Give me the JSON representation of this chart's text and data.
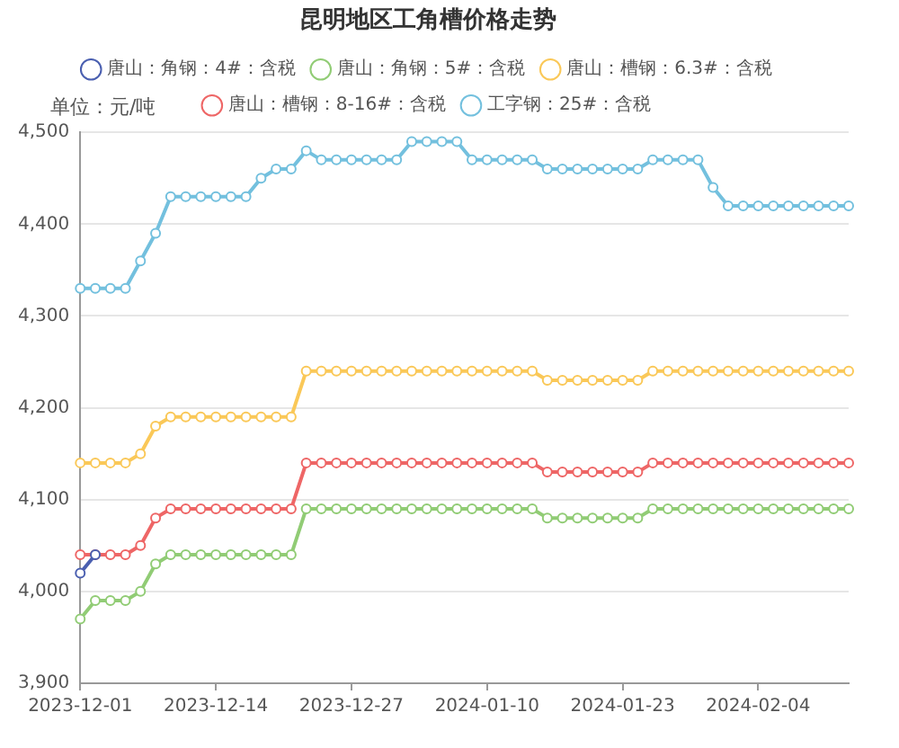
{
  "chart_data": {
    "type": "line",
    "title": "昆明地区工角槽价格走势",
    "ylabel": "单位：元/吨",
    "categories": [
      "2023-12-01",
      null,
      null,
      null,
      null,
      null,
      null,
      null,
      null,
      "2023-12-14",
      null,
      null,
      null,
      null,
      null,
      null,
      null,
      null,
      "2023-12-27",
      null,
      null,
      null,
      null,
      null,
      null,
      null,
      null,
      "2024-01-10",
      null,
      null,
      null,
      null,
      null,
      null,
      null,
      null,
      "2024-01-23",
      null,
      null,
      null,
      null,
      null,
      null,
      null,
      null,
      "2024-02-04",
      null,
      null,
      null,
      null,
      null,
      null
    ],
    "series": [
      {
        "name": "唐山：角钢：4#：含税",
        "color": "#4a5fb0",
        "values": [
          4020,
          4040,
          null,
          null,
          null,
          null,
          null,
          null,
          null,
          null,
          null,
          null,
          null,
          null,
          null,
          null,
          null,
          null,
          null,
          null,
          null,
          null,
          null,
          null,
          null,
          null,
          null,
          null,
          null,
          null,
          null,
          null,
          null,
          null,
          null,
          null,
          null,
          null,
          null,
          null,
          null,
          null,
          null,
          null,
          null,
          null,
          null,
          null,
          null,
          null,
          null,
          null
        ]
      },
      {
        "name": "唐山：角钢：5#：含税",
        "color": "#91cc75",
        "values": [
          3970,
          3990,
          3990,
          3990,
          4000,
          4030,
          4040,
          4040,
          4040,
          4040,
          4040,
          4040,
          4040,
          4040,
          4040,
          4090,
          4090,
          4090,
          4090,
          4090,
          4090,
          4090,
          4090,
          4090,
          4090,
          4090,
          4090,
          4090,
          4090,
          4090,
          4090,
          4080,
          4080,
          4080,
          4080,
          4080,
          4080,
          4080,
          4090,
          4090,
          4090,
          4090,
          4090,
          4090,
          4090,
          4090,
          4090,
          4090,
          4090,
          4090,
          4090,
          4090
        ]
      },
      {
        "name": "唐山：槽钢：6.3#：含税",
        "color": "#fac858",
        "values": [
          4140,
          4140,
          4140,
          4140,
          4150,
          4180,
          4190,
          4190,
          4190,
          4190,
          4190,
          4190,
          4190,
          4190,
          4190,
          4240,
          4240,
          4240,
          4240,
          4240,
          4240,
          4240,
          4240,
          4240,
          4240,
          4240,
          4240,
          4240,
          4240,
          4240,
          4240,
          4230,
          4230,
          4230,
          4230,
          4230,
          4230,
          4230,
          4240,
          4240,
          4240,
          4240,
          4240,
          4240,
          4240,
          4240,
          4240,
          4240,
          4240,
          4240,
          4240,
          4240
        ]
      },
      {
        "name": "唐山：槽钢：8-16#：含税",
        "color": "#ee6666",
        "values": [
          4040,
          4040,
          4040,
          4040,
          4050,
          4080,
          4090,
          4090,
          4090,
          4090,
          4090,
          4090,
          4090,
          4090,
          4090,
          4140,
          4140,
          4140,
          4140,
          4140,
          4140,
          4140,
          4140,
          4140,
          4140,
          4140,
          4140,
          4140,
          4140,
          4140,
          4140,
          4130,
          4130,
          4130,
          4130,
          4130,
          4130,
          4130,
          4140,
          4140,
          4140,
          4140,
          4140,
          4140,
          4140,
          4140,
          4140,
          4140,
          4140,
          4140,
          4140,
          4140
        ]
      },
      {
        "name": "工字钢：25#：含税",
        "color": "#73c0de",
        "values": [
          4330,
          4330,
          4330,
          4330,
          4360,
          4390,
          4430,
          4430,
          4430,
          4430,
          4430,
          4430,
          4450,
          4460,
          4460,
          4480,
          4470,
          4470,
          4470,
          4470,
          4470,
          4470,
          4490,
          4490,
          4490,
          4490,
          4470,
          4470,
          4470,
          4470,
          4470,
          4460,
          4460,
          4460,
          4460,
          4460,
          4460,
          4460,
          4470,
          4470,
          4470,
          4470,
          4440,
          4420,
          4420,
          4420,
          4420,
          4420,
          4420,
          4420,
          4420,
          4420
        ]
      }
    ],
    "ylim": [
      3900,
      4500
    ],
    "yticks": [
      {
        "value": 3900,
        "label": "3,900"
      },
      {
        "value": 4000,
        "label": "4,000"
      },
      {
        "value": 4100,
        "label": "4,100"
      },
      {
        "value": 4200,
        "label": "4,200"
      },
      {
        "value": 4300,
        "label": "4,300"
      },
      {
        "value": 4400,
        "label": "4,400"
      },
      {
        "value": 4500,
        "label": "4,500"
      }
    ],
    "grid": "y",
    "legend": "top",
    "marker": "circle",
    "line_style": "solid"
  }
}
